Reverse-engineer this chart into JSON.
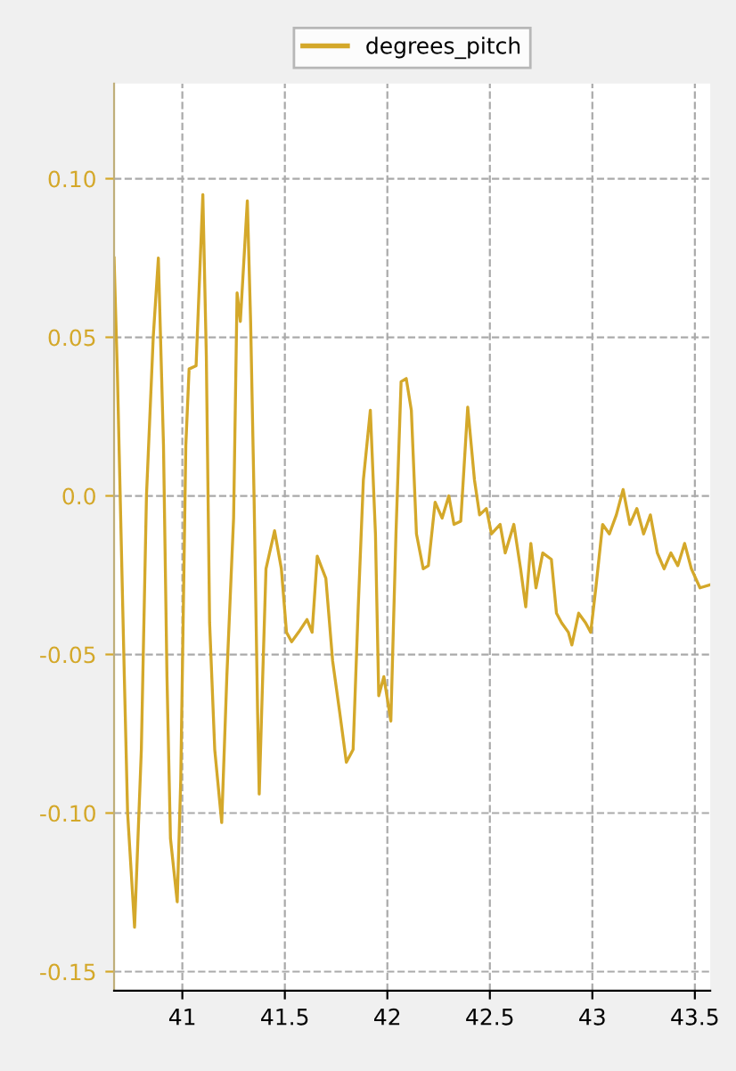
{
  "chart_data": {
    "type": "line",
    "legend": "top",
    "grid": true,
    "line_style": "solid",
    "marker": "none",
    "xlim": [
      40.667,
      43.575
    ],
    "ylim": [
      -0.156,
      0.13
    ],
    "xticks": [
      41,
      41.5,
      42,
      42.5,
      43,
      43.5
    ],
    "yticks": [
      {
        "value": 0.1,
        "label": "0.10"
      },
      {
        "value": 0.05,
        "label": "0.05"
      },
      {
        "value": 0.0,
        "label": "0.0"
      },
      {
        "value": -0.05,
        "label": "-0.05"
      },
      {
        "value": -0.1,
        "label": "-0.10"
      },
      {
        "value": -0.15,
        "label": "-0.15"
      }
    ],
    "series": [
      {
        "name": "degrees_pitch",
        "color": "#d4a82a",
        "x": [
          40.667,
          40.683,
          40.717,
          40.733,
          40.767,
          40.8,
          40.825,
          40.858,
          40.883,
          40.908,
          40.925,
          40.942,
          40.975,
          40.992,
          41.017,
          41.033,
          41.067,
          41.1,
          41.117,
          41.133,
          41.158,
          41.192,
          41.217,
          41.25,
          41.267,
          41.283,
          41.317,
          41.333,
          41.35,
          41.367,
          41.375,
          41.392,
          41.408,
          41.45,
          41.483,
          41.508,
          41.533,
          41.567,
          41.608,
          41.633,
          41.658,
          41.7,
          41.733,
          41.767,
          41.8,
          41.833,
          41.858,
          41.883,
          41.917,
          41.942,
          41.958,
          41.983,
          42.017,
          42.042,
          42.067,
          42.092,
          42.117,
          42.142,
          42.175,
          42.2,
          42.233,
          42.267,
          42.3,
          42.325,
          42.358,
          42.392,
          42.425,
          42.45,
          42.483,
          42.508,
          42.55,
          42.575,
          42.617,
          42.65,
          42.675,
          42.7,
          42.725,
          42.758,
          42.8,
          42.825,
          42.85,
          42.883,
          42.9,
          42.933,
          42.967,
          42.992,
          43.017,
          43.05,
          43.083,
          43.117,
          43.15,
          43.183,
          43.217,
          43.25,
          43.283,
          43.317,
          43.35,
          43.383,
          43.417,
          43.45,
          43.483,
          43.525,
          43.575
        ],
        "values": [
          0.075,
          0.039,
          -0.057,
          -0.1,
          -0.136,
          -0.08,
          0.0,
          0.05,
          0.075,
          0.016,
          -0.057,
          -0.108,
          -0.128,
          -0.09,
          0.016,
          0.04,
          0.041,
          0.095,
          0.044,
          -0.04,
          -0.08,
          -0.103,
          -0.057,
          -0.007,
          0.064,
          0.055,
          0.093,
          0.055,
          -0.001,
          -0.068,
          -0.094,
          -0.057,
          -0.023,
          -0.011,
          -0.023,
          -0.043,
          -0.046,
          -0.043,
          -0.039,
          -0.043,
          -0.019,
          -0.026,
          -0.052,
          -0.068,
          -0.084,
          -0.08,
          -0.035,
          0.005,
          0.027,
          -0.012,
          -0.063,
          -0.057,
          -0.071,
          -0.012,
          0.036,
          0.037,
          0.027,
          -0.012,
          -0.023,
          -0.022,
          -0.002,
          -0.007,
          0.0,
          -0.009,
          -0.008,
          0.028,
          0.005,
          -0.006,
          -0.004,
          -0.012,
          -0.009,
          -0.018,
          -0.009,
          -0.023,
          -0.035,
          -0.015,
          -0.029,
          -0.018,
          -0.02,
          -0.037,
          -0.04,
          -0.043,
          -0.047,
          -0.037,
          -0.04,
          -0.043,
          -0.029,
          -0.009,
          -0.012,
          -0.006,
          0.002,
          -0.009,
          -0.004,
          -0.012,
          -0.006,
          -0.018,
          -0.023,
          -0.018,
          -0.022,
          -0.015,
          -0.023,
          -0.029,
          -0.028
        ]
      }
    ]
  }
}
